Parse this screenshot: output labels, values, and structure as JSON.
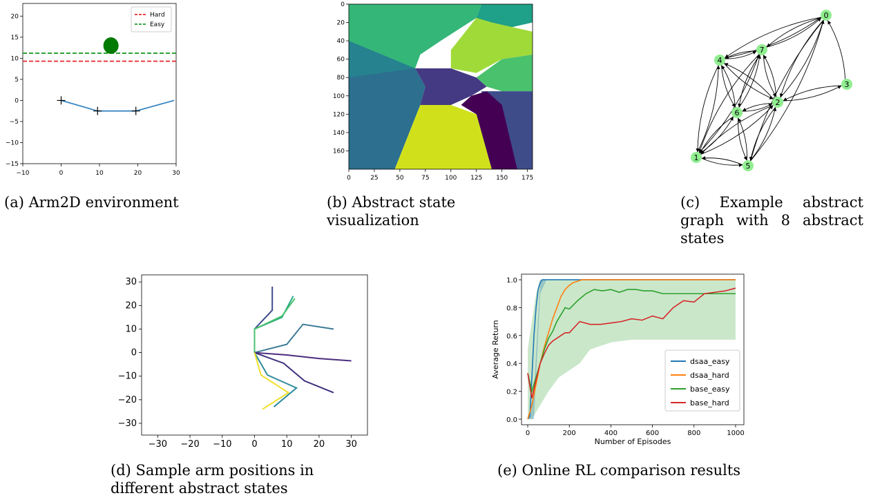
{
  "captions": {
    "a": "(a) Arm2D environment",
    "b": "(b) Abstract state visualization",
    "c": "(c) Example abstract graph with 8 abstract states",
    "d": "(d) Sample arm positions in different abstract states",
    "e": "(e) Online RL comparison results"
  },
  "chart_data": [
    {
      "type": "line",
      "panel": "a",
      "xlim": [
        -10,
        30
      ],
      "ylim": [
        -15,
        23
      ],
      "xticks": [
        "−10",
        "0",
        "10",
        "20",
        "30"
      ],
      "yticks": [
        "−15",
        "−10",
        "−5",
        "0",
        "5",
        "10",
        "15",
        "20"
      ],
      "legend": [
        "Hard",
        "Easy"
      ],
      "legend_position": "top-right",
      "series": [
        {
          "name": "Hard",
          "style": "dashed",
          "color": "#e8262a",
          "y": 9.3
        },
        {
          "name": "Easy",
          "style": "dashed",
          "color": "#1f9a2a",
          "y": 11.2
        },
        {
          "name": "arm",
          "color": "#3a87c2",
          "points": [
            [
              0,
              0
            ],
            [
              9.5,
              -2.5
            ],
            [
              19.5,
              -2.5
            ],
            [
              29.5,
              0
            ]
          ]
        }
      ],
      "joints": [
        [
          0,
          0
        ],
        [
          9.5,
          -2.5
        ],
        [
          19.5,
          -2.5
        ]
      ],
      "goal": {
        "x": 13,
        "y": 13,
        "color": "#007a00"
      }
    },
    {
      "type": "heatmap",
      "panel": "b",
      "xticks": [
        "0",
        "25",
        "50",
        "75",
        "100",
        "125",
        "150",
        "175"
      ],
      "yticks": [
        "0",
        "20",
        "40",
        "60",
        "80",
        "100",
        "120",
        "140",
        "160"
      ],
      "colors": [
        "#34b679",
        "#26828e",
        "#a0da39",
        "#4ac16d",
        "#2c6f8e",
        "#443a83",
        "#440154",
        "#d0e11c",
        "#3e4c8a",
        "#1fa088"
      ]
    },
    {
      "type": "graph",
      "panel": "c",
      "nodes": [
        "0",
        "1",
        "2",
        "3",
        "4",
        "5",
        "6",
        "7"
      ],
      "edges": [
        [
          "0",
          "7"
        ],
        [
          "7",
          "0"
        ],
        [
          "0",
          "4"
        ],
        [
          "4",
          "0"
        ],
        [
          "0",
          "2"
        ],
        [
          "2",
          "0"
        ],
        [
          "0",
          "5"
        ],
        [
          "5",
          "0"
        ],
        [
          "3",
          "0"
        ],
        [
          "2",
          "3"
        ],
        [
          "3",
          "2"
        ],
        [
          "7",
          "4"
        ],
        [
          "4",
          "7"
        ],
        [
          "7",
          "6"
        ],
        [
          "6",
          "7"
        ],
        [
          "7",
          "1"
        ],
        [
          "1",
          "7"
        ],
        [
          "7",
          "2"
        ],
        [
          "2",
          "7"
        ],
        [
          "4",
          "6"
        ],
        [
          "6",
          "4"
        ],
        [
          "4",
          "1"
        ],
        [
          "1",
          "4"
        ],
        [
          "4",
          "2"
        ],
        [
          "2",
          "4"
        ],
        [
          "6",
          "2"
        ],
        [
          "2",
          "6"
        ],
        [
          "6",
          "1"
        ],
        [
          "1",
          "6"
        ],
        [
          "6",
          "5"
        ],
        [
          "5",
          "6"
        ],
        [
          "2",
          "1"
        ],
        [
          "1",
          "2"
        ],
        [
          "2",
          "5"
        ],
        [
          "5",
          "2"
        ],
        [
          "1",
          "5"
        ],
        [
          "5",
          "1"
        ]
      ],
      "node_color": "#90ee90"
    },
    {
      "type": "line",
      "panel": "d",
      "xlim": [
        -35,
        35
      ],
      "ylim": [
        -35,
        33
      ],
      "xticks": [
        "−30",
        "−20",
        "−10",
        "0",
        "10",
        "20",
        "30"
      ],
      "yticks": [
        "−30",
        "−20",
        "−10",
        "0",
        "10",
        "20",
        "30"
      ],
      "series": [
        {
          "color": "#3e4c8a",
          "points": [
            [
              0,
              0
            ],
            [
              0,
              10
            ],
            [
              5.5,
              18
            ],
            [
              5.5,
              28
            ]
          ]
        },
        {
          "color": "#26a985",
          "points": [
            [
              0,
              0
            ],
            [
              0,
              10
            ],
            [
              8.5,
              15
            ],
            [
              12,
              24
            ]
          ]
        },
        {
          "color": "#4ac16d",
          "points": [
            [
              0,
              0
            ],
            [
              0,
              10
            ],
            [
              8.5,
              15.5
            ],
            [
              12.5,
              23
            ]
          ]
        },
        {
          "color": "#3b7a95",
          "points": [
            [
              0,
              0
            ],
            [
              10,
              3.5
            ],
            [
              15,
              12
            ],
            [
              24.5,
              10
            ]
          ]
        },
        {
          "color": "#4b2c7d",
          "points": [
            [
              0,
              0
            ],
            [
              10,
              -1
            ],
            [
              20,
              -2.5
            ],
            [
              30,
              -3.5
            ]
          ]
        },
        {
          "color": "#3a317e",
          "points": [
            [
              0,
              0
            ],
            [
              9,
              -4.5
            ],
            [
              15.5,
              -12
            ],
            [
              24.5,
              -17
            ]
          ]
        },
        {
          "color": "#2e8b9a",
          "points": [
            [
              0,
              0
            ],
            [
              4,
              -9.5
            ],
            [
              13,
              -15
            ],
            [
              6,
              -23
            ]
          ]
        },
        {
          "color": "#f0df2a",
          "points": [
            [
              0,
              0
            ],
            [
              2,
              -9.5
            ],
            [
              10.5,
              -17
            ],
            [
              2.5,
              -24
            ]
          ]
        }
      ]
    },
    {
      "type": "line",
      "panel": "e",
      "xlabel": "Number of Episodes",
      "ylabel": "Average Return",
      "xlim": [
        -30,
        1040
      ],
      "ylim": [
        -0.04,
        1.04
      ],
      "xticks": [
        "0",
        "200",
        "400",
        "600",
        "800",
        "1000"
      ],
      "yticks": [
        "0.0",
        "0.2",
        "0.4",
        "0.6",
        "0.8",
        "1.0"
      ],
      "legend_position": "lower-right",
      "series": [
        {
          "name": "dsaa_easy",
          "color": "#1f77b4",
          "x": [
            0,
            10,
            20,
            30,
            40,
            50,
            60,
            70,
            80,
            100,
            1000
          ],
          "y": [
            0.0,
            0.02,
            0.3,
            0.6,
            0.8,
            0.93,
            0.98,
            1.0,
            1.0,
            1.0,
            1.0
          ]
        },
        {
          "name": "dsaa_hard",
          "color": "#ff7f0e",
          "x": [
            0,
            20,
            40,
            60,
            80,
            100,
            120,
            140,
            160,
            180,
            200,
            220,
            240,
            260,
            1000
          ],
          "y": [
            0.0,
            0.1,
            0.25,
            0.4,
            0.52,
            0.62,
            0.72,
            0.8,
            0.88,
            0.93,
            0.96,
            0.98,
            0.99,
            1.0,
            1.0
          ]
        },
        {
          "name": "base_easy",
          "color": "#2ca02c",
          "x": [
            0,
            20,
            40,
            60,
            80,
            100,
            120,
            140,
            160,
            180,
            200,
            240,
            280,
            320,
            360,
            400,
            440,
            480,
            520,
            560,
            600,
            650,
            700,
            800,
            1000
          ],
          "y": [
            0.33,
            0.2,
            0.3,
            0.4,
            0.5,
            0.58,
            0.63,
            0.7,
            0.75,
            0.8,
            0.79,
            0.85,
            0.9,
            0.93,
            0.92,
            0.93,
            0.91,
            0.93,
            0.93,
            0.92,
            0.92,
            0.9,
            0.9,
            0.9,
            0.9
          ]
        },
        {
          "name": "base_hard",
          "color": "#d62728",
          "x": [
            0,
            20,
            40,
            60,
            80,
            100,
            120,
            140,
            160,
            180,
            200,
            250,
            300,
            350,
            400,
            450,
            500,
            550,
            600,
            650,
            700,
            750,
            800,
            850,
            900,
            950,
            1000
          ],
          "y": [
            0.33,
            0.15,
            0.28,
            0.4,
            0.47,
            0.53,
            0.56,
            0.58,
            0.6,
            0.62,
            0.62,
            0.7,
            0.68,
            0.68,
            0.69,
            0.7,
            0.72,
            0.71,
            0.74,
            0.72,
            0.8,
            0.85,
            0.84,
            0.9,
            0.91,
            0.92,
            0.94
          ]
        }
      ],
      "band": {
        "series": "base_easy",
        "x": [
          0,
          20,
          40,
          60,
          80,
          100,
          150,
          200,
          250,
          300,
          400,
          500,
          600,
          700,
          800,
          900,
          1000
        ],
        "lower": [
          0.0,
          0.0,
          0.05,
          0.1,
          0.15,
          0.2,
          0.3,
          0.35,
          0.4,
          0.5,
          0.55,
          0.57,
          0.57,
          0.57,
          0.57,
          0.57,
          0.57
        ],
        "upper": [
          0.5,
          0.7,
          0.9,
          1.0,
          1.0,
          1.0,
          1.0,
          1.0,
          1.0,
          1.0,
          1.0,
          1.0,
          1.0,
          1.0,
          1.0,
          1.0,
          1.0
        ]
      }
    }
  ]
}
